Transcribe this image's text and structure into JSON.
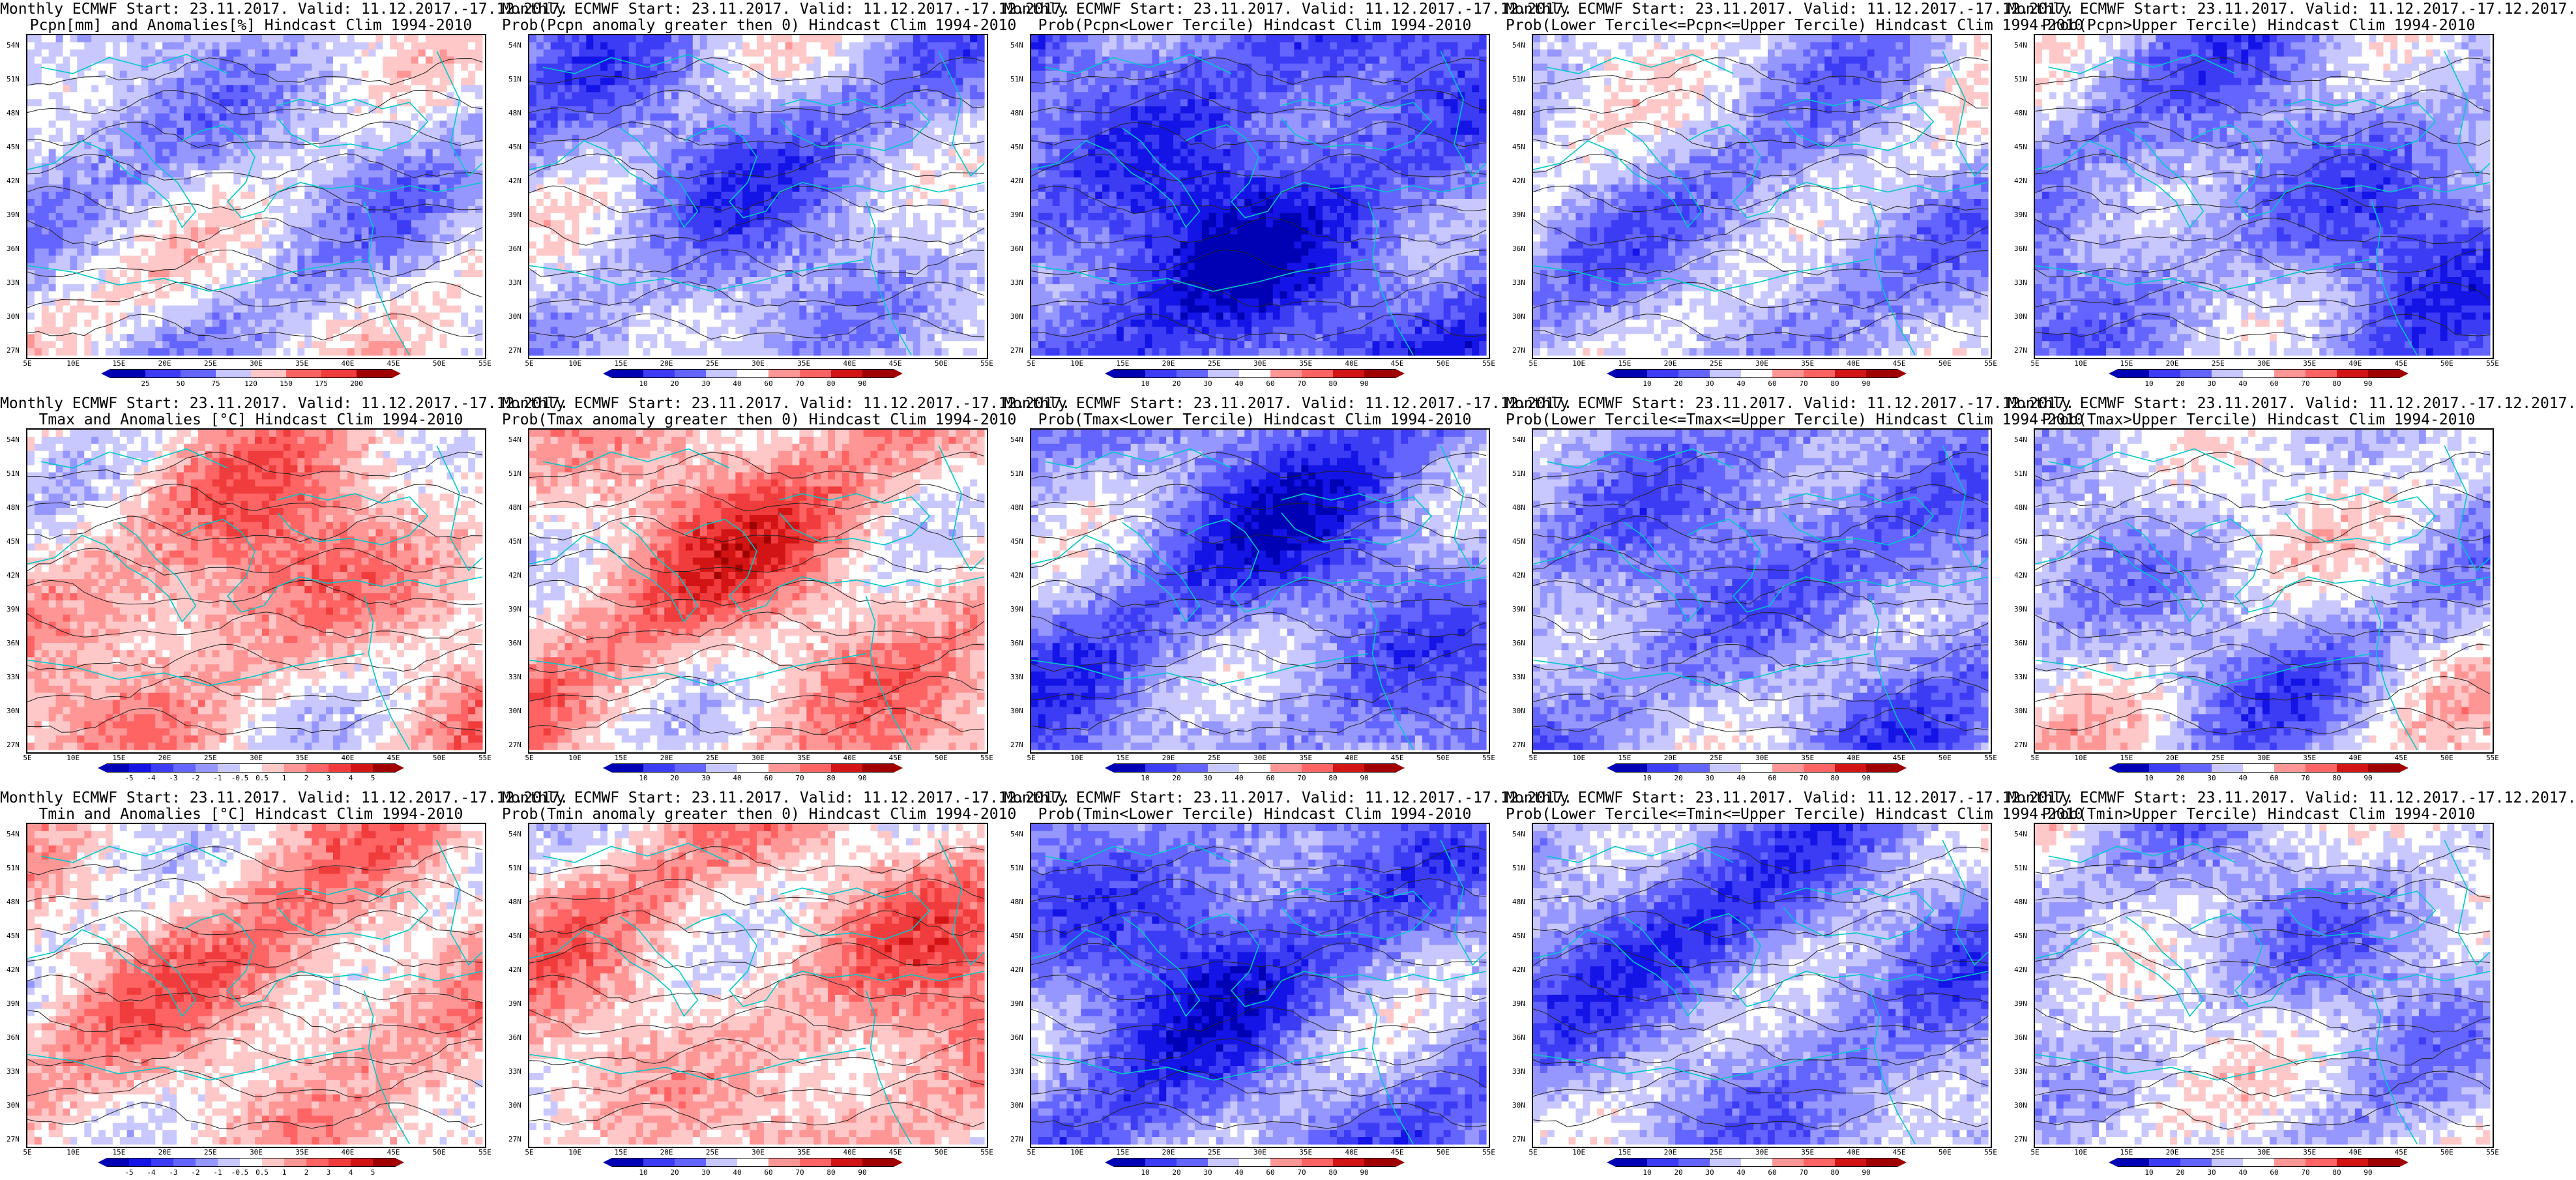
{
  "colors": {
    "diverging": [
      "#0000b4",
      "#1414e6",
      "#3c3cf5",
      "#6464ff",
      "#9696ff",
      "#c8c8ff",
      "#ffffff",
      "#ffc8c8",
      "#ff9696",
      "#ff6464",
      "#f03c3c",
      "#d21414",
      "#a00000"
    ],
    "contour": "#222222",
    "coast": "#00c8c8"
  },
  "lat_labels": [
    "54N",
    "51N",
    "48N",
    "45N",
    "42N",
    "39N",
    "36N",
    "33N",
    "30N",
    "27N"
  ],
  "lon_labels": [
    "5E",
    "10E",
    "15E",
    "20E",
    "25E",
    "30E",
    "35E",
    "40E",
    "45E",
    "50E",
    "55E"
  ],
  "colorbars": {
    "pcpn_anom": [
      "25",
      "50",
      "75",
      "120",
      "150",
      "175",
      "200"
    ],
    "temp_anom": [
      "-5",
      "-4",
      "-3",
      "-2",
      "-1",
      "-0.5",
      "0.5",
      "1",
      "2",
      "3",
      "4",
      "5"
    ],
    "prob": [
      "10",
      "20",
      "30",
      "40",
      "60",
      "70",
      "80",
      "90"
    ]
  },
  "panels": [
    {
      "id": "r1c1",
      "line1": "Monthly ECMWF Start: 23.11.2017. Valid: 11.12.2017.-17.12.2017.",
      "line2": "Pcpn[mm] and Anomalies[%] Hindcast Clim 1994-2010",
      "colorbar": "pcpn_anom",
      "bias": -0.6,
      "seed": 11
    },
    {
      "id": "r1c2",
      "line1": "Monthly ECMWF Start: 23.11.2017. Valid: 11.12.2017.-17.12.2017.",
      "line2": "Prob(Pcpn anomaly greater then 0) Hindcast Clim 1994-2010",
      "colorbar": "prob",
      "bias": -1.4,
      "seed": 12
    },
    {
      "id": "r1c3",
      "line1": "Monthly ECMWF Start: 23.11.2017. Valid: 11.12.2017.-17.12.2017.",
      "line2": "Prob(Pcpn<Lower Tercile) Hindcast Clim 1994-2010",
      "colorbar": "prob",
      "bias": -3.2,
      "seed": 13
    },
    {
      "id": "r1c4",
      "line1": "Monthly ECMWF Start: 23.11.2017. Valid: 11.12.2017.-17.12.2017.",
      "line2": "Prob(Lower Tercile<=Pcpn<=Upper Tercile) Hindcast Clim 1994-2010",
      "colorbar": "prob",
      "bias": -1.0,
      "seed": 14
    },
    {
      "id": "r1c5",
      "line1": "Monthly ECMWF Start: 23.11.2017. Valid: 11.12.2017.-17.12.2017.",
      "line2": "Prob(Pcpn>Upper Tercile) Hindcast Clim 1994-2010",
      "colorbar": "prob",
      "bias": -1.8,
      "seed": 15
    },
    {
      "id": "r2c1",
      "line1": "Monthly ECMWF Start: 23.11.2017. Valid: 11.12.2017.-17.12.2017.",
      "line2": "Tmax and Anomalies [°C] Hindcast Clim 1994-2010",
      "colorbar": "temp_anom",
      "bias": 0.9,
      "seed": 21
    },
    {
      "id": "r2c2",
      "line1": "Monthly ECMWF Start: 23.11.2017. Valid: 11.12.2017.-17.12.2017.",
      "line2": "Prob(Tmax anomaly greater then 0) Hindcast Clim 1994-2010",
      "colorbar": "prob",
      "bias": 1.1,
      "seed": 22
    },
    {
      "id": "r2c3",
      "line1": "Monthly ECMWF Start: 23.11.2017. Valid: 11.12.2017.-17.12.2017.",
      "line2": "Prob(Tmax<Lower Tercile) Hindcast Clim 1994-2010",
      "colorbar": "prob",
      "bias": -2.2,
      "seed": 23
    },
    {
      "id": "r2c4",
      "line1": "Monthly ECMWF Start: 23.11.2017. Valid: 11.12.2017.-17.12.2017.",
      "line2": "Prob(Lower Tercile<=Tmax<=Upper Tercile) Hindcast Clim 1994-2010",
      "colorbar": "prob",
      "bias": -1.9,
      "seed": 24
    },
    {
      "id": "r2c5",
      "line1": "Monthly ECMWF Start: 23.11.2017. Valid: 11.12.2017.-17.12.2017.",
      "line2": "Prob(Tmax>Upper Tercile) Hindcast Clim 1994-2010",
      "colorbar": "prob",
      "bias": -0.6,
      "seed": 25
    },
    {
      "id": "r3c1",
      "line1": "Monthly ECMWF Start: 23.11.2017. Valid: 11.12.2017.-17.12.2017.",
      "line2": "Tmin and Anomalies [°C] Hindcast Clim 1994-2010",
      "colorbar": "temp_anom",
      "bias": 0.8,
      "seed": 31
    },
    {
      "id": "r3c2",
      "line1": "Monthly ECMWF Start: 23.11.2017. Valid: 11.12.2017.-17.12.2017.",
      "line2": "Prob(Tmin anomaly greater then 0) Hindcast Clim 1994-2010",
      "colorbar": "prob",
      "bias": 1.0,
      "seed": 32
    },
    {
      "id": "r3c3",
      "line1": "Monthly ECMWF Start: 23.11.2017. Valid: 11.12.2017.-17.12.2017.",
      "line2": "Prob(Tmin<Lower Tercile) Hindcast Clim 1994-2010",
      "colorbar": "prob",
      "bias": -2.4,
      "seed": 33
    },
    {
      "id": "r3c4",
      "line1": "Monthly ECMWF Start: 23.11.2017. Valid: 11.12.2017.-17.12.2017.",
      "line2": "Prob(Lower Tercile<=Tmin<=Upper Tercile) Hindcast Clim 1994-2010",
      "colorbar": "prob",
      "bias": -1.8,
      "seed": 34
    },
    {
      "id": "r3c5",
      "line1": "Monthly ECMWF Start: 23.11.2017. Valid: 11.12.2017.-17.12.2017.",
      "line2": "Prob(Tmin>Upper Tercile) Hindcast Clim 1994-2010",
      "colorbar": "prob",
      "bias": -0.7,
      "seed": 35
    }
  ]
}
